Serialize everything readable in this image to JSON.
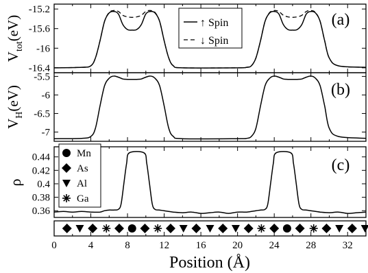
{
  "chart_data": [
    {
      "panel": "(a)",
      "type": "line",
      "ylabel_main": "V",
      "ylabel_sub": "tot",
      "ylabel_unit": "(eV)",
      "xlim": [
        0,
        34
      ],
      "ylim": [
        -16.5,
        -15.1
      ],
      "yticks": [
        "-15.2",
        "-15.6",
        "-16",
        "-16.4"
      ],
      "ytick_values": [
        -15.2,
        -15.6,
        -16.0,
        -16.4
      ],
      "legend_placement": "top-center",
      "series": [
        {
          "name": "↑ Spin",
          "style": "solid",
          "x": [
            0,
            3,
            4,
            4.5,
            5,
            5.5,
            6,
            6.5,
            7,
            7.5,
            8,
            8.5,
            9,
            9.5,
            10,
            10.5,
            11,
            11.5,
            12,
            12.5,
            13,
            14,
            20,
            21,
            21.5,
            22,
            22.5,
            23,
            23.5,
            24,
            24.5,
            25,
            25.5,
            26,
            26.5,
            27,
            27.5,
            28,
            28.5,
            29,
            29.5,
            30,
            31,
            34
          ],
          "values": [
            -16.4,
            -16.39,
            -16.36,
            -16.2,
            -15.85,
            -15.45,
            -15.28,
            -15.25,
            -15.3,
            -15.52,
            -15.62,
            -15.63,
            -15.62,
            -15.52,
            -15.3,
            -15.25,
            -15.28,
            -15.45,
            -15.85,
            -16.2,
            -16.36,
            -16.4,
            -16.4,
            -16.39,
            -16.36,
            -16.2,
            -15.85,
            -15.45,
            -15.28,
            -15.25,
            -15.3,
            -15.52,
            -15.62,
            -15.63,
            -15.62,
            -15.52,
            -15.3,
            -15.25,
            -15.28,
            -15.45,
            -15.85,
            -16.2,
            -16.36,
            -16.39
          ]
        },
        {
          "name": "↓ Spin",
          "style": "dashed",
          "x": [
            0,
            3,
            4,
            4.5,
            5,
            5.5,
            6,
            6.5,
            7,
            7.5,
            8,
            8.5,
            9,
            9.5,
            10,
            10.5,
            11,
            11.5,
            12,
            12.5,
            13,
            14,
            20,
            21,
            21.5,
            22,
            22.5,
            23,
            23.5,
            24,
            24.5,
            25,
            25.5,
            26,
            26.5,
            27,
            27.5,
            28,
            28.5,
            29,
            29.5,
            30,
            31,
            34
          ],
          "values": [
            -16.4,
            -16.39,
            -16.36,
            -16.2,
            -15.85,
            -15.45,
            -15.27,
            -15.23,
            -15.25,
            -15.33,
            -15.36,
            -15.37,
            -15.36,
            -15.33,
            -15.25,
            -15.23,
            -15.27,
            -15.45,
            -15.85,
            -16.2,
            -16.36,
            -16.4,
            -16.4,
            -16.39,
            -16.36,
            -16.2,
            -15.85,
            -15.45,
            -15.27,
            -15.23,
            -15.25,
            -15.33,
            -15.36,
            -15.37,
            -15.36,
            -15.33,
            -15.25,
            -15.23,
            -15.27,
            -15.45,
            -15.85,
            -16.2,
            -16.36,
            -16.39
          ]
        }
      ]
    },
    {
      "panel": "(b)",
      "type": "line",
      "ylabel_main": "V",
      "ylabel_sub": "H",
      "ylabel_unit": "(eV)",
      "xlim": [
        0,
        34
      ],
      "ylim": [
        -7.25,
        -5.4
      ],
      "yticks": [
        "-5.5",
        "-6",
        "-6.5",
        "-7"
      ],
      "ytick_values": [
        -5.5,
        -6.0,
        -6.5,
        -7.0
      ],
      "series": [
        {
          "style": "solid",
          "x": [
            0,
            3,
            4,
            4.5,
            5,
            5.5,
            6,
            6.5,
            7,
            7.5,
            8,
            8.5,
            9,
            9.5,
            10,
            10.5,
            11,
            11.5,
            12,
            12.5,
            13,
            14,
            20,
            21,
            21.5,
            22,
            22.5,
            23,
            23.5,
            24,
            24.5,
            25,
            25.5,
            26,
            26.5,
            27,
            27.5,
            28,
            28.5,
            29,
            29.5,
            30,
            31,
            34
          ],
          "values": [
            -7.18,
            -7.17,
            -7.12,
            -6.9,
            -6.3,
            -5.75,
            -5.55,
            -5.49,
            -5.52,
            -5.57,
            -5.58,
            -5.58,
            -5.58,
            -5.57,
            -5.52,
            -5.49,
            -5.55,
            -5.75,
            -6.3,
            -6.9,
            -7.12,
            -7.18,
            -7.18,
            -7.17,
            -7.12,
            -6.9,
            -6.3,
            -5.75,
            -5.55,
            -5.49,
            -5.52,
            -5.57,
            -5.58,
            -5.58,
            -5.58,
            -5.57,
            -5.52,
            -5.49,
            -5.55,
            -5.75,
            -6.3,
            -6.9,
            -7.12,
            -7.17
          ]
        }
      ]
    },
    {
      "panel": "(c)",
      "type": "line",
      "ylabel_main": "ρ",
      "xlim": [
        0,
        34
      ],
      "ylim": [
        0.35,
        0.455
      ],
      "yticks": [
        "0.44",
        "0.42",
        "0.4",
        "0.38",
        "0.36"
      ],
      "ytick_values": [
        0.44,
        0.42,
        0.4,
        0.38,
        0.36
      ],
      "legend_placement": "left",
      "legend": [
        {
          "label": "Mn",
          "marker": "circle"
        },
        {
          "label": "As",
          "marker": "diamond"
        },
        {
          "label": "Al",
          "marker": "triangle-down"
        },
        {
          "label": "Ga",
          "marker": "star"
        }
      ],
      "series": [
        {
          "style": "solid",
          "x": [
            0,
            1,
            2,
            3,
            4,
            5,
            5.5,
            6,
            6.5,
            7,
            7.3,
            7.6,
            7.9,
            8.2,
            9.8,
            10.1,
            10.4,
            10.7,
            11,
            11.5,
            12,
            13,
            14,
            15,
            16,
            17,
            18,
            19,
            20,
            21,
            22,
            22.5,
            23,
            23.3,
            23.6,
            23.9,
            24.2,
            25.8,
            26.1,
            26.4,
            26.7,
            27,
            27.5,
            28,
            29,
            30,
            31,
            32,
            33,
            34
          ],
          "values": [
            0.358,
            0.359,
            0.358,
            0.359,
            0.358,
            0.358,
            0.36,
            0.361,
            0.361,
            0.362,
            0.37,
            0.4,
            0.43,
            0.446,
            0.446,
            0.43,
            0.4,
            0.37,
            0.362,
            0.361,
            0.36,
            0.358,
            0.357,
            0.358,
            0.356,
            0.357,
            0.358,
            0.356,
            0.358,
            0.358,
            0.36,
            0.361,
            0.362,
            0.37,
            0.4,
            0.43,
            0.446,
            0.446,
            0.43,
            0.4,
            0.37,
            0.362,
            0.361,
            0.36,
            0.358,
            0.357,
            0.358,
            0.356,
            0.357,
            0.358
          ]
        }
      ]
    },
    {
      "panel": "atoms",
      "type": "scatter",
      "xlim": [
        0,
        34
      ],
      "atoms": [
        {
          "x": 1.4,
          "species": "As"
        },
        {
          "x": 2.8,
          "species": "Al"
        },
        {
          "x": 4.2,
          "species": "As"
        },
        {
          "x": 5.7,
          "species": "Ga"
        },
        {
          "x": 7.1,
          "species": "As"
        },
        {
          "x": 8.5,
          "species": "Mn"
        },
        {
          "x": 9.9,
          "species": "As"
        },
        {
          "x": 11.3,
          "species": "Ga"
        },
        {
          "x": 12.7,
          "species": "As"
        },
        {
          "x": 14.1,
          "species": "Al"
        },
        {
          "x": 15.5,
          "species": "As"
        },
        {
          "x": 17.0,
          "species": "Al"
        },
        {
          "x": 18.4,
          "species": "As"
        },
        {
          "x": 19.8,
          "species": "Al"
        },
        {
          "x": 21.2,
          "species": "As"
        },
        {
          "x": 22.6,
          "species": "Ga"
        },
        {
          "x": 24.0,
          "species": "As"
        },
        {
          "x": 25.4,
          "species": "Mn"
        },
        {
          "x": 26.8,
          "species": "As"
        },
        {
          "x": 28.3,
          "species": "Ga"
        },
        {
          "x": 29.7,
          "species": "As"
        },
        {
          "x": 31.1,
          "species": "Al"
        },
        {
          "x": 32.5,
          "species": "As"
        },
        {
          "x": 33.9,
          "species": "Al"
        }
      ],
      "xticks": [
        "0",
        "4",
        "8",
        "12",
        "16",
        "20",
        "24",
        "28",
        "32"
      ],
      "xtick_values": [
        0,
        4,
        8,
        12,
        16,
        20,
        24,
        28,
        32
      ],
      "xlabel": "Position (Å)"
    }
  ]
}
